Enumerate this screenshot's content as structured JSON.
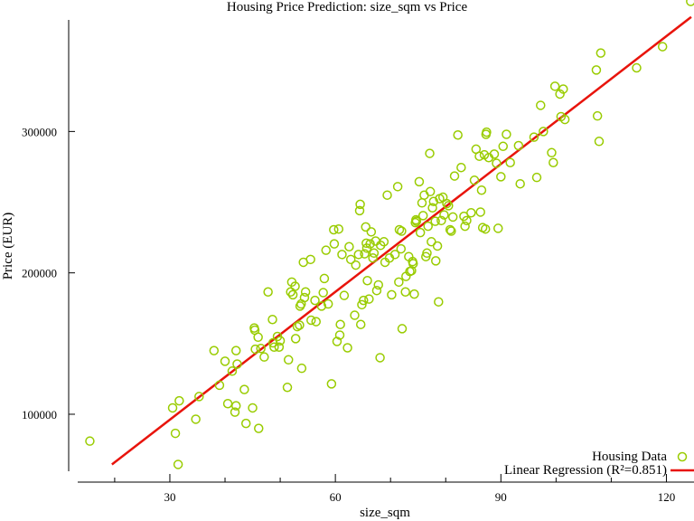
{
  "chart_data": {
    "type": "scatter",
    "title": "Housing Price Prediction: size_sqm vs Price",
    "xlabel": "size_sqm",
    "ylabel": "Price (EUR)",
    "xlim": [
      13.3,
      125.0
    ],
    "ylim": [
      52000,
      393000
    ],
    "xticks": [
      30,
      60,
      90,
      120
    ],
    "xticks_minor": [
      20,
      40,
      50,
      70,
      80,
      100,
      110
    ],
    "yticks": [
      100000,
      200000,
      300000
    ],
    "legend_position": "bottom-right",
    "grid": false,
    "series": [
      {
        "name": "Housing Data",
        "kind": "scatter",
        "marker": "open-circle",
        "color": "#99cc00",
        "points": [
          [
            15.5,
            81000
          ],
          [
            30.5,
            104500
          ],
          [
            31,
            86500
          ],
          [
            31.5,
            64500
          ],
          [
            31.7,
            109500
          ],
          [
            34.7,
            96500
          ],
          [
            35.3,
            112500
          ],
          [
            38,
            145000
          ],
          [
            39,
            120500
          ],
          [
            40,
            137500
          ],
          [
            40.5,
            107500
          ],
          [
            41.3,
            130500
          ],
          [
            41.8,
            101500
          ],
          [
            42,
            106000
          ],
          [
            42,
            145000
          ],
          [
            42.2,
            135500
          ],
          [
            43.5,
            117500
          ],
          [
            43.8,
            93500
          ],
          [
            45,
            104500
          ],
          [
            45.3,
            161000
          ],
          [
            45.4,
            159500
          ],
          [
            45.5,
            146000
          ],
          [
            46,
            154500
          ],
          [
            46.1,
            90000
          ],
          [
            46.5,
            146500
          ],
          [
            47.1,
            140500
          ],
          [
            47.8,
            186500
          ],
          [
            48.6,
            167000
          ],
          [
            48.7,
            150500
          ],
          [
            48.9,
            147500
          ],
          [
            49.5,
            155000
          ],
          [
            49.8,
            147500
          ],
          [
            50,
            152000
          ],
          [
            51.3,
            119000
          ],
          [
            51.5,
            138500
          ],
          [
            51.9,
            186500
          ],
          [
            52.1,
            193500
          ],
          [
            52.3,
            184500
          ],
          [
            52.7,
            190500
          ],
          [
            52.8,
            153500
          ],
          [
            53.1,
            162000
          ],
          [
            53.5,
            163000
          ],
          [
            53.6,
            176500
          ],
          [
            53.8,
            178000
          ],
          [
            53.9,
            132500
          ],
          [
            54.2,
            207500
          ],
          [
            54.4,
            182500
          ],
          [
            54.6,
            186500
          ],
          [
            55.5,
            209500
          ],
          [
            55.6,
            166500
          ],
          [
            56.3,
            180500
          ],
          [
            56.5,
            165500
          ],
          [
            57.5,
            176500
          ],
          [
            57.8,
            186000
          ],
          [
            58,
            196000
          ],
          [
            58.3,
            216000
          ],
          [
            58.7,
            178000
          ],
          [
            59.3,
            121500
          ],
          [
            59.7,
            230500
          ],
          [
            59.8,
            220500
          ],
          [
            60.3,
            151500
          ],
          [
            60.6,
            231000
          ],
          [
            60.8,
            156000
          ],
          [
            60.9,
            163500
          ],
          [
            61.2,
            213000
          ],
          [
            61.6,
            184000
          ],
          [
            62.2,
            147000
          ],
          [
            62.5,
            218500
          ],
          [
            62.8,
            209500
          ],
          [
            63.5,
            170000
          ],
          [
            63.7,
            205500
          ],
          [
            64.2,
            213000
          ],
          [
            64.4,
            244000
          ],
          [
            64.5,
            248500
          ],
          [
            64.6,
            163500
          ],
          [
            64.8,
            177500
          ],
          [
            65.1,
            180500
          ],
          [
            65.3,
            213500
          ],
          [
            65.5,
            232500
          ],
          [
            65.6,
            221000
          ],
          [
            65.7,
            217500
          ],
          [
            65.8,
            194500
          ],
          [
            66.1,
            181500
          ],
          [
            66.3,
            220500
          ],
          [
            66.5,
            229000
          ],
          [
            66.8,
            210500
          ],
          [
            67,
            214000
          ],
          [
            67.3,
            222500
          ],
          [
            67.5,
            187500
          ],
          [
            67.8,
            191500
          ],
          [
            68.1,
            140000
          ],
          [
            68.2,
            219500
          ],
          [
            68.8,
            222000
          ],
          [
            69,
            207500
          ],
          [
            69.4,
            255000
          ],
          [
            69.8,
            210500
          ],
          [
            70.2,
            184500
          ],
          [
            70.8,
            213000
          ],
          [
            71.3,
            261000
          ],
          [
            71.5,
            193500
          ],
          [
            71.6,
            230500
          ],
          [
            71.9,
            217000
          ],
          [
            72,
            229500
          ],
          [
            72.1,
            160500
          ],
          [
            72.7,
            186500
          ],
          [
            72.8,
            197500
          ],
          [
            73.3,
            211500
          ],
          [
            73.5,
            201000
          ],
          [
            73.8,
            201500
          ],
          [
            74,
            208000
          ],
          [
            74.1,
            206500
          ],
          [
            74.3,
            185000
          ],
          [
            74.5,
            235500
          ],
          [
            74.6,
            237500
          ],
          [
            74.7,
            236500
          ],
          [
            75.2,
            264500
          ],
          [
            75.4,
            228500
          ],
          [
            75.7,
            249500
          ],
          [
            75.9,
            240500
          ],
          [
            76.1,
            255000
          ],
          [
            76.4,
            211500
          ],
          [
            76.6,
            214000
          ],
          [
            76.8,
            233000
          ],
          [
            77.1,
            284500
          ],
          [
            77.2,
            257500
          ],
          [
            77.4,
            222000
          ],
          [
            77.6,
            246000
          ],
          [
            77.8,
            250500
          ],
          [
            78.1,
            236500
          ],
          [
            78.2,
            208500
          ],
          [
            78.5,
            219000
          ],
          [
            78.7,
            179500
          ],
          [
            78.9,
            252500
          ],
          [
            79.2,
            237000
          ],
          [
            79.5,
            253500
          ],
          [
            79.7,
            241000
          ],
          [
            80.2,
            249000
          ],
          [
            80.5,
            247500
          ],
          [
            80.8,
            230500
          ],
          [
            81,
            229500
          ],
          [
            81.3,
            239500
          ],
          [
            81.6,
            268500
          ],
          [
            82.2,
            297500
          ],
          [
            82.8,
            274500
          ],
          [
            83.3,
            240000
          ],
          [
            83.5,
            233000
          ],
          [
            83.8,
            237000
          ],
          [
            84.6,
            242500
          ],
          [
            85.2,
            265500
          ],
          [
            85.5,
            287500
          ],
          [
            86.1,
            282500
          ],
          [
            86.3,
            243000
          ],
          [
            86.5,
            258500
          ],
          [
            86.7,
            232000
          ],
          [
            87,
            283500
          ],
          [
            87.2,
            231000
          ],
          [
            87.3,
            298000
          ],
          [
            87.4,
            299500
          ],
          [
            87.8,
            281500
          ],
          [
            88.8,
            284000
          ],
          [
            89.2,
            277500
          ],
          [
            89.5,
            231500
          ],
          [
            90,
            268000
          ],
          [
            90.4,
            289500
          ],
          [
            91,
            298000
          ],
          [
            91.7,
            278000
          ],
          [
            93.2,
            290000
          ],
          [
            93.5,
            263000
          ],
          [
            96,
            296000
          ],
          [
            96.5,
            267500
          ],
          [
            97.2,
            318500
          ],
          [
            97.7,
            300000
          ],
          [
            99.2,
            285000
          ],
          [
            99.5,
            278000
          ],
          [
            99.8,
            332000
          ],
          [
            100.7,
            326500
          ],
          [
            100.9,
            310500
          ],
          [
            101.3,
            330000
          ],
          [
            101.6,
            308500
          ],
          [
            107.3,
            343500
          ],
          [
            107.5,
            311000
          ],
          [
            107.8,
            293000
          ],
          [
            108.1,
            355500
          ],
          [
            114.6,
            345000
          ],
          [
            119.3,
            360000
          ],
          [
            124.4,
            392000
          ]
        ]
      },
      {
        "name": "Linear Regression (R²=0.851)",
        "kind": "line",
        "color": "#e8140c",
        "x": [
          19.5,
          124.5
        ],
        "y": [
          64500,
          381000
        ]
      }
    ]
  }
}
